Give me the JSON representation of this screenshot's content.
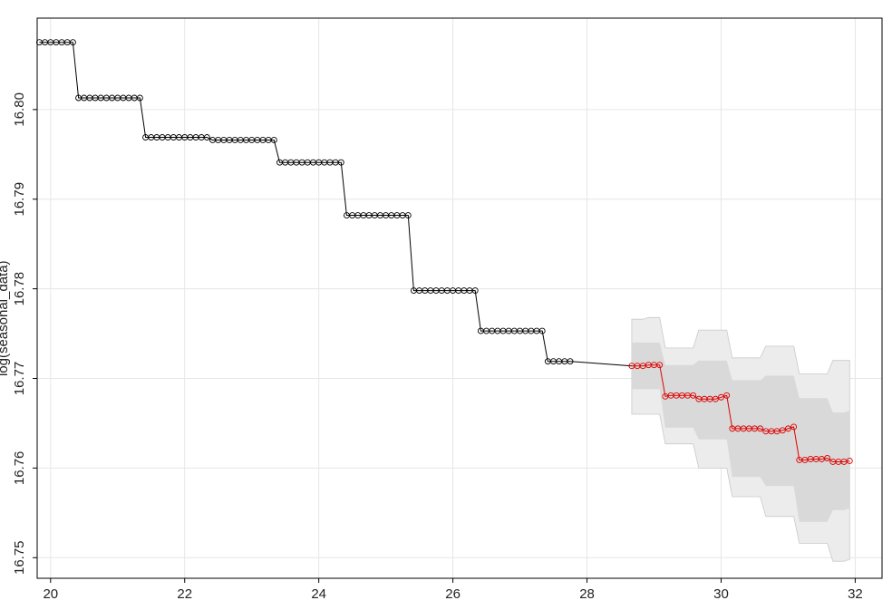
{
  "chart_data": {
    "type": "line",
    "title": "",
    "xlabel": "",
    "ylabel": "log(seasonal_data)",
    "xlim": [
      19.8,
      32.4
    ],
    "ylim": [
      16.7477,
      16.8102
    ],
    "xticks": [
      20,
      22,
      24,
      26,
      28,
      30,
      32
    ],
    "xtick_labels": [
      "20",
      "22",
      "24",
      "26",
      "28",
      "30",
      "32"
    ],
    "yticks": [
      16.75,
      16.76,
      16.77,
      16.78,
      16.79,
      16.8
    ],
    "ytick_labels": [
      "16.75",
      "16.76",
      "16.77",
      "16.78",
      "16.79",
      "16.80"
    ],
    "grid": true,
    "legend": "none",
    "colors": {
      "observed": "#000000",
      "forecast": "#dd0000",
      "band_80": "#d9d9d9",
      "band_95": "#ececec",
      "grid": "#e6e6e6"
    },
    "series": [
      {
        "x_start": 19.833,
        "dx": 0.08333,
        "marker": "open-circle",
        "segments": [
          {
            "n": 7,
            "y": 16.8075
          },
          {
            "n": 12,
            "y": 16.8013
          },
          {
            "n": 12,
            "y": 16.7969
          },
          {
            "n": 12,
            "y": 16.7966
          },
          {
            "n": 12,
            "y": 16.7941
          },
          {
            "n": 12,
            "y": 16.7882
          },
          {
            "n": 12,
            "y": 16.7798
          },
          {
            "n": 12,
            "y": 16.7753
          },
          {
            "n": 5,
            "y": 16.7719
          }
        ]
      },
      {
        "x_start": 28.667,
        "dx": 0.08333,
        "marker": "open-circle",
        "values": [
          16.7714,
          16.7714,
          16.7714,
          16.7715,
          16.7715,
          16.7715,
          16.768,
          16.7681,
          16.7681,
          16.7681,
          16.7681,
          16.7681,
          16.7677,
          16.7677,
          16.7677,
          16.7677,
          16.7679,
          16.7681,
          16.7644,
          16.7644,
          16.7644,
          16.7644,
          16.7644,
          16.7644,
          16.7641,
          16.7641,
          16.7641,
          16.7642,
          16.7644,
          16.7646,
          16.7609,
          16.7609,
          16.761,
          16.761,
          16.761,
          16.7611,
          16.7607,
          16.7607,
          16.7607,
          16.7608
        ],
        "lo80": [
          16.7688,
          16.7688,
          16.7688,
          16.7688,
          16.7688,
          16.7688,
          16.7645,
          16.7645,
          16.7645,
          16.7645,
          16.7645,
          16.7645,
          16.7632,
          16.7632,
          16.7632,
          16.7632,
          16.7632,
          16.7632,
          16.759,
          16.759,
          16.759,
          16.759,
          16.759,
          16.759,
          16.758,
          16.758,
          16.758,
          16.758,
          16.758,
          16.758,
          16.754,
          16.754,
          16.754,
          16.754,
          16.754,
          16.754,
          16.7553,
          16.7553,
          16.7553,
          16.7555
        ],
        "hi80": [
          16.774,
          16.774,
          16.774,
          16.774,
          16.774,
          16.774,
          16.7715,
          16.7715,
          16.7715,
          16.7715,
          16.7715,
          16.7715,
          16.772,
          16.772,
          16.772,
          16.772,
          16.772,
          16.772,
          16.7698,
          16.7698,
          16.7698,
          16.7698,
          16.7698,
          16.7698,
          16.7703,
          16.7703,
          16.7703,
          16.7703,
          16.7703,
          16.7703,
          16.7678,
          16.7678,
          16.7678,
          16.7678,
          16.7678,
          16.7678,
          16.7662,
          16.7662,
          16.7662,
          16.7664
        ],
        "lo95": [
          16.766,
          16.766,
          16.766,
          16.766,
          16.766,
          16.766,
          16.7627,
          16.7627,
          16.7627,
          16.7627,
          16.7627,
          16.7627,
          16.76,
          16.76,
          16.76,
          16.76,
          16.76,
          16.76,
          16.7568,
          16.7568,
          16.7568,
          16.7568,
          16.7568,
          16.7568,
          16.7546,
          16.7546,
          16.7546,
          16.7546,
          16.7546,
          16.7546,
          16.7516,
          16.7516,
          16.7516,
          16.7516,
          16.7516,
          16.7516,
          16.7496,
          16.7496,
          16.7496,
          16.7498
        ],
        "hi95": [
          16.7766,
          16.7766,
          16.7766,
          16.7768,
          16.7768,
          16.7768,
          16.7734,
          16.7734,
          16.7734,
          16.7734,
          16.7734,
          16.7734,
          16.7754,
          16.7754,
          16.7754,
          16.7754,
          16.7754,
          16.7754,
          16.7723,
          16.7723,
          16.7723,
          16.7723,
          16.7723,
          16.7723,
          16.7736,
          16.7736,
          16.7736,
          16.7736,
          16.7736,
          16.7736,
          16.7705,
          16.7705,
          16.7705,
          16.7705,
          16.7705,
          16.7705,
          16.772,
          16.772,
          16.772,
          16.772
        ]
      }
    ]
  }
}
